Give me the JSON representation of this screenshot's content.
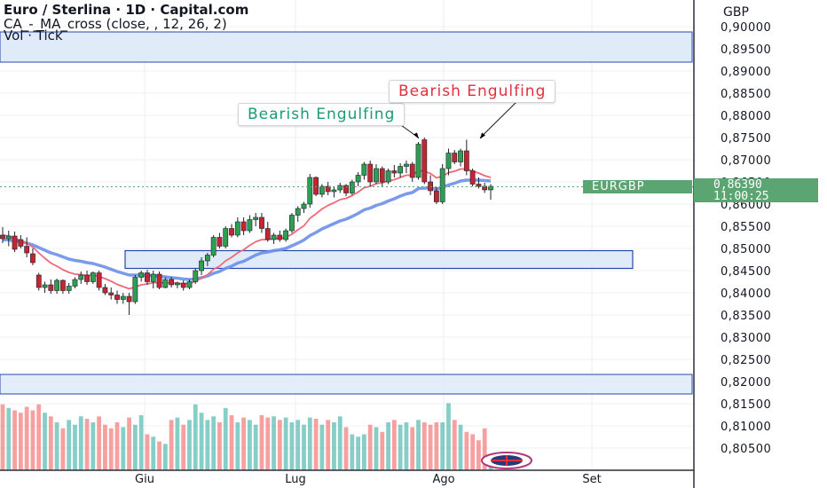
{
  "header": {
    "title": "Euro / Sterlina · 1D · Capital.com",
    "indicator_1": "CA_-_MA_cross (close, , 12, 26, 2)",
    "indicator_2": "Vol · Tick"
  },
  "currency_label": "GBP",
  "price_tag": {
    "symbol": "EURGBP",
    "price": "0,86390",
    "countdown": "11:00:25"
  },
  "annotations": [
    {
      "text": "Bearish Engulfing",
      "color": "#1b9c73"
    },
    {
      "text": "Bearish Engulfing",
      "color": "#e0303d"
    }
  ],
  "colors": {
    "up": "#26a69a",
    "down": "#ef5350",
    "ma_fast": "#ef6a78",
    "ma_slow": "#6b8fe8",
    "zone_fill": "#dbe8f9",
    "zone_border": "#2847a8",
    "tag": "#5aa572"
  },
  "chart_data": {
    "type": "candlestick",
    "title": "Euro / Sterlina · 1D · Capital.com",
    "x_tick_labels": [
      "Giu",
      "Lug",
      "Ago",
      "Set"
    ],
    "y_tick_labels": [
      "0,90000",
      "0,89500",
      "0,89000",
      "0,88500",
      "0,88000",
      "0,87500",
      "0,87000",
      "0,86500",
      "0,86000",
      "0,85500",
      "0,85000",
      "0,84500",
      "0,84000",
      "0,83500",
      "0,83000",
      "0,82500",
      "0,82000",
      "0,81500",
      "0,81000",
      "0,80500"
    ],
    "ylim": [
      0.8035,
      0.9045
    ],
    "grid": true,
    "current_price": 0.8639,
    "candles": [
      {
        "o": 0.853,
        "h": 0.8548,
        "l": 0.8512,
        "c": 0.8522
      },
      {
        "o": 0.8522,
        "h": 0.854,
        "l": 0.8505,
        "c": 0.8528
      },
      {
        "o": 0.8528,
        "h": 0.8538,
        "l": 0.8492,
        "c": 0.8498
      },
      {
        "o": 0.852,
        "h": 0.853,
        "l": 0.85,
        "c": 0.8505
      },
      {
        "o": 0.8505,
        "h": 0.8525,
        "l": 0.848,
        "c": 0.849
      },
      {
        "o": 0.8488,
        "h": 0.85,
        "l": 0.8462,
        "c": 0.8468
      },
      {
        "o": 0.844,
        "h": 0.8445,
        "l": 0.8405,
        "c": 0.8412
      },
      {
        "o": 0.8412,
        "h": 0.8425,
        "l": 0.84,
        "c": 0.8418
      },
      {
        "o": 0.8418,
        "h": 0.843,
        "l": 0.8398,
        "c": 0.8405
      },
      {
        "o": 0.8405,
        "h": 0.8432,
        "l": 0.8398,
        "c": 0.8428
      },
      {
        "o": 0.8428,
        "h": 0.843,
        "l": 0.8398,
        "c": 0.8405
      },
      {
        "o": 0.8405,
        "h": 0.8422,
        "l": 0.8398,
        "c": 0.8415
      },
      {
        "o": 0.8415,
        "h": 0.8435,
        "l": 0.841,
        "c": 0.843
      },
      {
        "o": 0.843,
        "h": 0.8448,
        "l": 0.842,
        "c": 0.844
      },
      {
        "o": 0.844,
        "h": 0.845,
        "l": 0.8418,
        "c": 0.8425
      },
      {
        "o": 0.8425,
        "h": 0.8448,
        "l": 0.842,
        "c": 0.8445
      },
      {
        "o": 0.8445,
        "h": 0.845,
        "l": 0.8405,
        "c": 0.8412
      },
      {
        "o": 0.8412,
        "h": 0.842,
        "l": 0.8395,
        "c": 0.84
      },
      {
        "o": 0.84,
        "h": 0.8412,
        "l": 0.8385,
        "c": 0.8395
      },
      {
        "o": 0.8395,
        "h": 0.8405,
        "l": 0.8375,
        "c": 0.8385
      },
      {
        "o": 0.8385,
        "h": 0.84,
        "l": 0.8375,
        "c": 0.8392
      },
      {
        "o": 0.8392,
        "h": 0.84,
        "l": 0.835,
        "c": 0.838
      },
      {
        "o": 0.838,
        "h": 0.844,
        "l": 0.8375,
        "c": 0.8435
      },
      {
        "o": 0.8435,
        "h": 0.845,
        "l": 0.8425,
        "c": 0.8445
      },
      {
        "o": 0.8445,
        "h": 0.8452,
        "l": 0.8418,
        "c": 0.8425
      },
      {
        "o": 0.8425,
        "h": 0.845,
        "l": 0.841,
        "c": 0.8442
      },
      {
        "o": 0.8442,
        "h": 0.8448,
        "l": 0.8408,
        "c": 0.8412
      },
      {
        "o": 0.8412,
        "h": 0.8435,
        "l": 0.841,
        "c": 0.843
      },
      {
        "o": 0.843,
        "h": 0.8436,
        "l": 0.8412,
        "c": 0.8418
      },
      {
        "o": 0.8418,
        "h": 0.8425,
        "l": 0.841,
        "c": 0.8422
      },
      {
        "o": 0.8422,
        "h": 0.8428,
        "l": 0.8405,
        "c": 0.8412
      },
      {
        "o": 0.8412,
        "h": 0.843,
        "l": 0.8408,
        "c": 0.8425
      },
      {
        "o": 0.8425,
        "h": 0.8455,
        "l": 0.842,
        "c": 0.845
      },
      {
        "o": 0.845,
        "h": 0.848,
        "l": 0.844,
        "c": 0.8472
      },
      {
        "o": 0.8472,
        "h": 0.849,
        "l": 0.846,
        "c": 0.8485
      },
      {
        "o": 0.8485,
        "h": 0.853,
        "l": 0.848,
        "c": 0.8525
      },
      {
        "o": 0.8525,
        "h": 0.8535,
        "l": 0.85,
        "c": 0.8505
      },
      {
        "o": 0.8505,
        "h": 0.855,
        "l": 0.85,
        "c": 0.8545
      },
      {
        "o": 0.8545,
        "h": 0.8555,
        "l": 0.8525,
        "c": 0.853
      },
      {
        "o": 0.853,
        "h": 0.857,
        "l": 0.8525,
        "c": 0.856
      },
      {
        "o": 0.856,
        "h": 0.857,
        "l": 0.853,
        "c": 0.854
      },
      {
        "o": 0.854,
        "h": 0.8575,
        "l": 0.8535,
        "c": 0.8565
      },
      {
        "o": 0.8565,
        "h": 0.858,
        "l": 0.855,
        "c": 0.857
      },
      {
        "o": 0.857,
        "h": 0.858,
        "l": 0.8535,
        "c": 0.8545
      },
      {
        "o": 0.8545,
        "h": 0.856,
        "l": 0.8515,
        "c": 0.852
      },
      {
        "o": 0.852,
        "h": 0.8535,
        "l": 0.851,
        "c": 0.853
      },
      {
        "o": 0.853,
        "h": 0.854,
        "l": 0.8515,
        "c": 0.852
      },
      {
        "o": 0.852,
        "h": 0.8545,
        "l": 0.8515,
        "c": 0.854
      },
      {
        "o": 0.854,
        "h": 0.858,
        "l": 0.8535,
        "c": 0.8575
      },
      {
        "o": 0.8575,
        "h": 0.8595,
        "l": 0.856,
        "c": 0.859
      },
      {
        "o": 0.859,
        "h": 0.8605,
        "l": 0.858,
        "c": 0.86
      },
      {
        "o": 0.86,
        "h": 0.8668,
        "l": 0.8592,
        "c": 0.866
      },
      {
        "o": 0.866,
        "h": 0.8662,
        "l": 0.8618,
        "c": 0.8622
      },
      {
        "o": 0.8622,
        "h": 0.8645,
        "l": 0.8615,
        "c": 0.864
      },
      {
        "o": 0.864,
        "h": 0.865,
        "l": 0.862,
        "c": 0.8628
      },
      {
        "o": 0.8628,
        "h": 0.864,
        "l": 0.8615,
        "c": 0.8632
      },
      {
        "o": 0.8632,
        "h": 0.8648,
        "l": 0.8625,
        "c": 0.8642
      },
      {
        "o": 0.8642,
        "h": 0.8645,
        "l": 0.8618,
        "c": 0.8625
      },
      {
        "o": 0.8625,
        "h": 0.8655,
        "l": 0.862,
        "c": 0.865
      },
      {
        "o": 0.865,
        "h": 0.8672,
        "l": 0.864,
        "c": 0.8665
      },
      {
        "o": 0.8665,
        "h": 0.8695,
        "l": 0.8655,
        "c": 0.869
      },
      {
        "o": 0.869,
        "h": 0.8698,
        "l": 0.864,
        "c": 0.865
      },
      {
        "o": 0.865,
        "h": 0.869,
        "l": 0.8645,
        "c": 0.868
      },
      {
        "o": 0.868,
        "h": 0.8685,
        "l": 0.864,
        "c": 0.865
      },
      {
        "o": 0.865,
        "h": 0.868,
        "l": 0.8645,
        "c": 0.8675
      },
      {
        "o": 0.8675,
        "h": 0.8688,
        "l": 0.866,
        "c": 0.867
      },
      {
        "o": 0.867,
        "h": 0.8692,
        "l": 0.866,
        "c": 0.8685
      },
      {
        "o": 0.8685,
        "h": 0.8698,
        "l": 0.867,
        "c": 0.869
      },
      {
        "o": 0.869,
        "h": 0.8695,
        "l": 0.865,
        "c": 0.866
      },
      {
        "o": 0.866,
        "h": 0.874,
        "l": 0.8655,
        "c": 0.8735
      },
      {
        "o": 0.8745,
        "h": 0.875,
        "l": 0.8645,
        "c": 0.865
      },
      {
        "o": 0.865,
        "h": 0.8665,
        "l": 0.862,
        "c": 0.863
      },
      {
        "o": 0.863,
        "h": 0.8638,
        "l": 0.86,
        "c": 0.8605
      },
      {
        "o": 0.8605,
        "h": 0.869,
        "l": 0.86,
        "c": 0.868
      },
      {
        "o": 0.868,
        "h": 0.8725,
        "l": 0.8665,
        "c": 0.8715
      },
      {
        "o": 0.8715,
        "h": 0.8722,
        "l": 0.869,
        "c": 0.8695
      },
      {
        "o": 0.8695,
        "h": 0.8725,
        "l": 0.8685,
        "c": 0.872
      },
      {
        "o": 0.872,
        "h": 0.8745,
        "l": 0.8665,
        "c": 0.8675
      },
      {
        "o": 0.8675,
        "h": 0.868,
        "l": 0.864,
        "c": 0.8645
      },
      {
        "o": 0.8645,
        "h": 0.866,
        "l": 0.8635,
        "c": 0.864
      },
      {
        "o": 0.864,
        "h": 0.8648,
        "l": 0.8625,
        "c": 0.8632
      },
      {
        "o": 0.8632,
        "h": 0.8645,
        "l": 0.861,
        "c": 0.864
      }
    ],
    "ma_fast": [
      0.853,
      0.8528,
      0.8522,
      0.8518,
      0.8512,
      0.8503,
      0.849,
      0.8478,
      0.8467,
      0.846,
      0.8452,
      0.8446,
      0.8442,
      0.8441,
      0.8439,
      0.844,
      0.8437,
      0.8432,
      0.8426,
      0.8419,
      0.8414,
      0.8409,
      0.8413,
      0.8418,
      0.842,
      0.8423,
      0.8422,
      0.8423,
      0.8422,
      0.8422,
      0.842,
      0.8421,
      0.8426,
      0.8433,
      0.8441,
      0.8453,
      0.846,
      0.8472,
      0.848,
      0.849,
      0.8497,
      0.8507,
      0.8515,
      0.852,
      0.852,
      0.8522,
      0.8522,
      0.8525,
      0.8532,
      0.8542,
      0.8551,
      0.8568,
      0.8578,
      0.8589,
      0.8597,
      0.8603,
      0.861,
      0.8613,
      0.8619,
      0.8627,
      0.8637,
      0.864,
      0.8646,
      0.8648,
      0.8652,
      0.8655,
      0.866,
      0.8665,
      0.8665,
      0.8676,
      0.8674,
      0.8669,
      0.8659,
      0.8663,
      0.8671,
      0.8674,
      0.8679,
      0.8679,
      0.8674,
      0.867,
      0.8664,
      0.866
    ],
    "ma_slow": [
      0.852,
      0.8519,
      0.8517,
      0.8515,
      0.8512,
      0.8508,
      0.8502,
      0.8496,
      0.849,
      0.8486,
      0.8481,
      0.8476,
      0.8473,
      0.8471,
      0.8468,
      0.8466,
      0.8462,
      0.8458,
      0.8453,
      0.8448,
      0.8444,
      0.844,
      0.844,
      0.844,
      0.8439,
      0.8439,
      0.8437,
      0.8436,
      0.8434,
      0.8433,
      0.8431,
      0.843,
      0.8431,
      0.8434,
      0.8438,
      0.8444,
      0.8448,
      0.8455,
      0.846,
      0.8467,
      0.8471,
      0.8478,
      0.8485,
      0.849,
      0.8492,
      0.8495,
      0.8497,
      0.85,
      0.8506,
      0.8512,
      0.8519,
      0.8529,
      0.8536,
      0.8544,
      0.855,
      0.8556,
      0.8562,
      0.8566,
      0.8572,
      0.8579,
      0.8587,
      0.8591,
      0.8597,
      0.8601,
      0.8607,
      0.8612,
      0.8618,
      0.8623,
      0.8626,
      0.8635,
      0.8636,
      0.8636,
      0.8634,
      0.8638,
      0.8643,
      0.8647,
      0.8652,
      0.8654,
      0.8654,
      0.8654,
      0.8653,
      0.8652
    ],
    "volume_ylim": [
      0,
      1
    ],
    "volume": [
      0.55,
      0.52,
      0.5,
      0.48,
      0.53,
      0.5,
      0.55,
      0.48,
      0.45,
      0.4,
      0.35,
      0.42,
      0.38,
      0.45,
      0.43,
      0.4,
      0.45,
      0.38,
      0.35,
      0.4,
      0.36,
      0.44,
      0.38,
      0.46,
      0.3,
      0.28,
      0.24,
      0.22,
      0.42,
      0.44,
      0.38,
      0.42,
      0.55,
      0.48,
      0.42,
      0.45,
      0.4,
      0.52,
      0.46,
      0.4,
      0.44,
      0.42,
      0.38,
      0.46,
      0.44,
      0.45,
      0.42,
      0.44,
      0.4,
      0.42,
      0.38,
      0.44,
      0.43,
      0.38,
      0.42,
      0.4,
      0.45,
      0.36,
      0.3,
      0.28,
      0.3,
      0.38,
      0.36,
      0.32,
      0.4,
      0.42,
      0.38,
      0.4,
      0.36,
      0.42,
      0.4,
      0.38,
      0.4,
      0.4,
      0.56,
      0.42,
      0.38,
      0.32,
      0.3,
      0.25,
      0.35,
      0.12
    ]
  }
}
